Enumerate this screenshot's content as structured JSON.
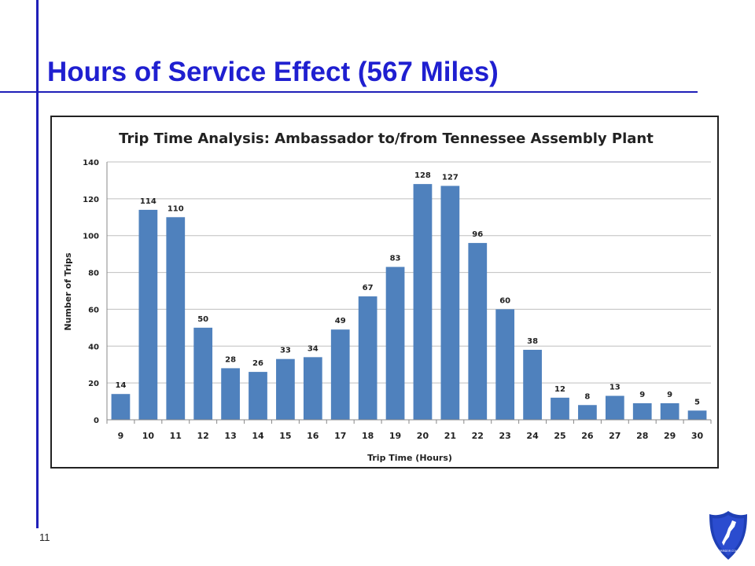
{
  "slide": {
    "title": "Hours of Service Effect (567 Miles)",
    "page_number": "11",
    "accent_color": "#1f1fb8"
  },
  "logo": {
    "icon": "i-95-corridor-coalition-shield-icon",
    "caption": "I-95 CORRIDOR COALITION"
  },
  "chart_data": {
    "type": "bar",
    "title": "Trip Time Analysis: Ambassador to/from Tennessee Assembly Plant",
    "xlabel": "Trip Time (Hours)",
    "ylabel": "Number of Trips",
    "categories": [
      "9",
      "10",
      "11",
      "12",
      "13",
      "14",
      "15",
      "16",
      "17",
      "18",
      "19",
      "20",
      "21",
      "22",
      "23",
      "24",
      "25",
      "26",
      "27",
      "28",
      "29",
      "30"
    ],
    "values": [
      14,
      114,
      110,
      50,
      28,
      26,
      33,
      34,
      49,
      67,
      83,
      128,
      127,
      96,
      60,
      38,
      12,
      8,
      13,
      9,
      9,
      5
    ],
    "ylim": [
      0,
      140
    ],
    "yticks": [
      0,
      20,
      40,
      60,
      80,
      100,
      120,
      140
    ],
    "grid": true,
    "legend": "none",
    "bar_color": "#4f81bd",
    "data_labels": true
  }
}
